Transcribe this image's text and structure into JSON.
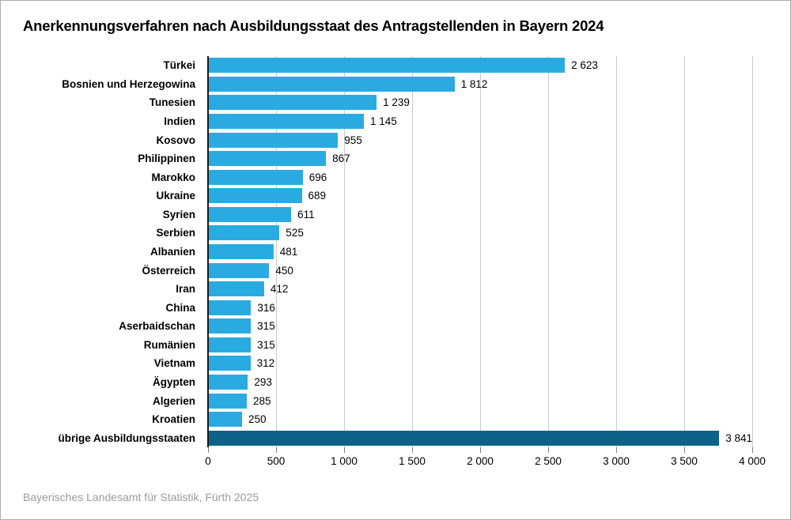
{
  "chart_data": {
    "type": "bar",
    "orientation": "horizontal",
    "title": "Anerkennungsverfahren nach Ausbildungsstaat des Antragstellenden in Bayern 2024",
    "source_note": "Bayerisches Landesamt für Statistik, Fürth 2025",
    "categories": [
      "Türkei",
      "Bosnien und Herzegowina",
      "Tunesien",
      "Indien",
      "Kosovo",
      "Philippinen",
      "Marokko",
      "Ukraine",
      "Syrien",
      "Serbien",
      "Albanien",
      "Österreich",
      "Iran",
      "China",
      "Aserbaidschan",
      "Rumänien",
      "Vietnam",
      "Ägypten",
      "Algerien",
      "Kroatien",
      "übrige Ausbildungsstaaten"
    ],
    "values": [
      2623,
      1812,
      1239,
      1145,
      955,
      867,
      696,
      689,
      611,
      525,
      481,
      450,
      412,
      316,
      315,
      315,
      312,
      293,
      285,
      250,
      3841
    ],
    "value_labels": [
      "2 623",
      "1 812",
      "1 239",
      "1 145",
      "955",
      "867",
      "696",
      "689",
      "611",
      "525",
      "481",
      "450",
      "412",
      "316",
      "315",
      "315",
      "312",
      "293",
      "285",
      "250",
      "3 841"
    ],
    "highlight_index": 20,
    "highlight_category": "übrige Ausbildungsstaaten",
    "xlim": [
      0,
      4000
    ],
    "x_ticks": [
      0,
      500,
      1000,
      1500,
      2000,
      2500,
      3000,
      3500,
      4000
    ],
    "x_tick_labels": [
      "0",
      "500",
      "1 000",
      "1 500",
      "2 000",
      "2 500",
      "3 000",
      "3 500",
      "4 000"
    ],
    "grid": true,
    "legend": false,
    "bar_color": "#29ABE2",
    "highlight_color": "#0E6287"
  },
  "colors": {
    "background": "#ffffff",
    "frame_border": "#adadad",
    "grid": "#c9c9c9",
    "axis": "#1a1a1a",
    "tick": "#7f7f7f",
    "text": "#000000",
    "source_text": "#9b9b9b"
  }
}
